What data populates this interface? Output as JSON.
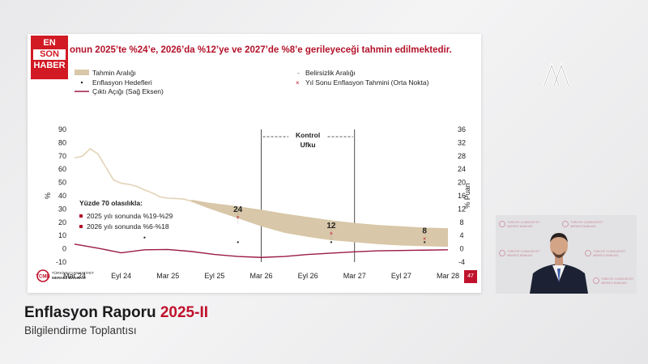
{
  "slide": {
    "title": "onun 2025’te %24’e, 2026’da %12’ye ve 2027’de %8’e gerileyeceği tahmin edilmektedir.",
    "page_number": "47",
    "bank_name_line1": "TÜRKİYE CUMHURİYET",
    "bank_name_line2": "MERKEZ BANKASI",
    "bank_abbr": "TCMB"
  },
  "branding": {
    "ensonhaber": [
      "EN",
      "SON",
      "HABER"
    ]
  },
  "caption": {
    "title_main": "Enflasyon Raporu ",
    "title_year": "2025-II",
    "subtitle": "Bilgilendirme Toplantısı"
  },
  "video_backdrop": {
    "line1": "TÜRKİYE CUMHURİYET",
    "line2": "MERKEZ BANKASI"
  },
  "chart_data": {
    "type": "line",
    "legend": {
      "band": "Tahmin Aralığı",
      "targets": "Enflasyon Hedefleri",
      "output_gap": "Çıktı Açığı (Sağ Eksen)",
      "uncertainty": "Belirsizlik Aralığı",
      "year_end": "Yıl Sonu Enflasyon Tahmini (Orta Nokta)"
    },
    "ylabel_left": "%",
    "ylabel_right": "% Puan",
    "y_left": {
      "min": -10,
      "max": 90,
      "ticks": [
        -10,
        0,
        10,
        20,
        30,
        40,
        50,
        60,
        70,
        80,
        90
      ]
    },
    "y_right": {
      "min": -4,
      "max": 36,
      "ticks": [
        -4,
        0,
        4,
        8,
        12,
        16,
        20,
        24,
        28,
        32,
        36
      ]
    },
    "x_ticks": [
      "Mar 24",
      "Eyl 24",
      "Mar 25",
      "Eyl 25",
      "Mar 26",
      "Eyl 26",
      "Mar 27",
      "Eyl 27",
      "Mar 28"
    ],
    "x_range": [
      0,
      48
    ],
    "control_horizon": {
      "label_line1": "Kontrol",
      "label_line2": "Ufku",
      "start": 24,
      "end": 36
    },
    "inflation": {
      "x": [
        0,
        1,
        2,
        3,
        4,
        5,
        6,
        7,
        8,
        9,
        10,
        11,
        12,
        13,
        14,
        15
      ],
      "y": [
        68.5,
        69.8,
        75.4,
        71.6,
        61.8,
        52.0,
        49.4,
        48.6,
        47.1,
        44.4,
        42.1,
        39.1,
        38.1,
        37.9,
        37.5,
        36.0
      ]
    },
    "forecast_band": {
      "x": [
        15,
        17,
        19,
        21,
        24,
        27,
        30,
        33,
        36,
        39,
        42,
        45,
        48
      ],
      "lower": [
        35.5,
        31,
        27,
        23,
        17,
        12,
        9,
        6.5,
        5,
        3.5,
        2.5,
        2,
        1.5
      ],
      "upper": [
        37,
        35,
        33.5,
        32,
        29.5,
        26.5,
        24,
        21.5,
        19.5,
        18,
        17,
        16,
        15.5
      ]
    },
    "year_end_forecasts": [
      {
        "x": 21,
        "y": 24,
        "label": "24"
      },
      {
        "x": 33,
        "y": 12,
        "label": "12"
      },
      {
        "x": 45,
        "y": 8,
        "label": "8"
      }
    ],
    "uncertainty_ranges": [
      {
        "x": 21,
        "low": 19,
        "high": 29
      },
      {
        "x": 33,
        "low": 6,
        "high": 18
      }
    ],
    "targets": [
      {
        "x": 9,
        "y": 8.5
      },
      {
        "x": 21,
        "y": 5
      },
      {
        "x": 33,
        "y": 5
      },
      {
        "x": 45,
        "y": 5
      }
    ],
    "output_gap": {
      "x": [
        0,
        3,
        6,
        9,
        12,
        15,
        18,
        21,
        24,
        27,
        30,
        33,
        36,
        39,
        42,
        45,
        48
      ],
      "y": [
        1.4,
        0.2,
        -1.2,
        -0.3,
        -0.2,
        -0.8,
        -1.7,
        -2.3,
        -2.6,
        -2.3,
        -1.7,
        -1.3,
        -0.9,
        -0.6,
        -0.5,
        -0.4,
        -0.3
      ]
    },
    "annotation_title": "Yüzde 70 olasılıkla:",
    "annotations": [
      "2025 yılı sonunda %19-%29",
      "2026 yılı sonunda %6-%18"
    ]
  }
}
